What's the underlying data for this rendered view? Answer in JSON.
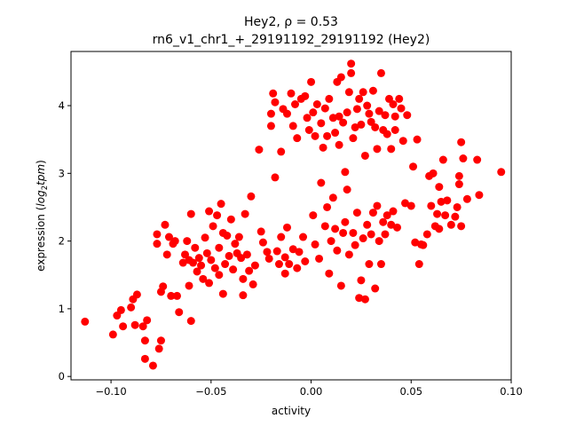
{
  "chart_data": {
    "type": "scatter",
    "title": "Hey2, ρ = 0.53",
    "subtitle": "rn6_v1_chr1_+_29191192_29191192 (Hey2)",
    "xlabel": "activity",
    "ylabel_prefix": "expression (",
    "ylabel_math": "log",
    "ylabel_sub": "2",
    "ylabel_math2": "tpm",
    "ylabel_suffix": ")",
    "xlim": [
      -0.12,
      0.1
    ],
    "ylim": [
      -0.05,
      4.8
    ],
    "xticks": [
      {
        "value": -0.1,
        "label": "−0.10"
      },
      {
        "value": -0.05,
        "label": "−0.05"
      },
      {
        "value": 0.0,
        "label": "0.00"
      },
      {
        "value": 0.05,
        "label": "0.05"
      },
      {
        "value": 0.1,
        "label": "0.10"
      }
    ],
    "yticks": [
      {
        "value": 0,
        "label": "0"
      },
      {
        "value": 1,
        "label": "1"
      },
      {
        "value": 2,
        "label": "2"
      },
      {
        "value": 3,
        "label": "3"
      },
      {
        "value": 4,
        "label": "4"
      }
    ],
    "grid": false,
    "marker_color": "#ff0000",
    "points": [
      [
        -0.113,
        0.81
      ],
      [
        -0.099,
        0.62
      ],
      [
        -0.097,
        0.9
      ],
      [
        -0.095,
        0.98
      ],
      [
        -0.094,
        0.74
      ],
      [
        -0.09,
        1.02
      ],
      [
        -0.089,
        1.14
      ],
      [
        -0.088,
        0.76
      ],
      [
        -0.087,
        1.21
      ],
      [
        -0.084,
        0.74
      ],
      [
        -0.083,
        0.53
      ],
      [
        -0.083,
        0.26
      ],
      [
        -0.082,
        0.83
      ],
      [
        -0.079,
        0.16
      ],
      [
        -0.077,
        2.1
      ],
      [
        -0.077,
        1.96
      ],
      [
        -0.076,
        0.41
      ],
      [
        -0.075,
        0.53
      ],
      [
        -0.075,
        1.25
      ],
      [
        -0.074,
        1.33
      ],
      [
        -0.073,
        2.24
      ],
      [
        -0.072,
        1.8
      ],
      [
        -0.071,
        2.06
      ],
      [
        -0.07,
        1.19
      ],
      [
        -0.069,
        1.96
      ],
      [
        -0.068,
        2.0
      ],
      [
        -0.067,
        1.19
      ],
      [
        -0.066,
        0.95
      ],
      [
        -0.064,
        1.68
      ],
      [
        -0.063,
        1.8
      ],
      [
        -0.062,
        2.0
      ],
      [
        -0.061,
        1.72
      ],
      [
        -0.061,
        1.34
      ],
      [
        -0.06,
        2.4
      ],
      [
        -0.06,
        0.82
      ],
      [
        -0.059,
        1.68
      ],
      [
        -0.058,
        1.9
      ],
      [
        -0.057,
        1.55
      ],
      [
        -0.056,
        1.75
      ],
      [
        -0.055,
        1.64
      ],
      [
        -0.054,
        1.44
      ],
      [
        -0.053,
        2.05
      ],
      [
        -0.052,
        1.82
      ],
      [
        -0.051,
        2.44
      ],
      [
        -0.051,
        1.38
      ],
      [
        -0.05,
        1.72
      ],
      [
        -0.049,
        2.22
      ],
      [
        -0.048,
        1.6
      ],
      [
        -0.047,
        2.38
      ],
      [
        -0.046,
        1.9
      ],
      [
        -0.046,
        1.5
      ],
      [
        -0.045,
        2.55
      ],
      [
        -0.044,
        2.12
      ],
      [
        -0.044,
        1.22
      ],
      [
        -0.043,
        1.66
      ],
      [
        -0.042,
        2.08
      ],
      [
        -0.041,
        1.78
      ],
      [
        -0.04,
        2.32
      ],
      [
        -0.039,
        1.58
      ],
      [
        -0.038,
        1.96
      ],
      [
        -0.037,
        1.82
      ],
      [
        -0.036,
        2.06
      ],
      [
        -0.035,
        1.75
      ],
      [
        -0.034,
        1.44
      ],
      [
        -0.034,
        1.2
      ],
      [
        -0.033,
        2.4
      ],
      [
        -0.032,
        1.8
      ],
      [
        -0.031,
        1.56
      ],
      [
        -0.03,
        2.66
      ],
      [
        -0.029,
        1.36
      ],
      [
        -0.028,
        1.64
      ],
      [
        -0.026,
        3.35
      ],
      [
        -0.025,
        2.14
      ],
      [
        -0.024,
        1.98
      ],
      [
        -0.022,
        1.84
      ],
      [
        -0.021,
        1.74
      ],
      [
        -0.02,
        3.88
      ],
      [
        -0.02,
        3.7
      ],
      [
        -0.019,
        4.18
      ],
      [
        -0.018,
        2.94
      ],
      [
        -0.018,
        4.05
      ],
      [
        -0.017,
        1.85
      ],
      [
        -0.016,
        1.66
      ],
      [
        -0.015,
        3.32
      ],
      [
        -0.015,
        2.06
      ],
      [
        -0.014,
        3.95
      ],
      [
        -0.013,
        1.76
      ],
      [
        -0.013,
        1.52
      ],
      [
        -0.012,
        3.88
      ],
      [
        -0.012,
        2.2
      ],
      [
        -0.011,
        1.66
      ],
      [
        -0.01,
        4.18
      ],
      [
        -0.009,
        3.7
      ],
      [
        -0.009,
        1.88
      ],
      [
        -0.008,
        4.02
      ],
      [
        -0.007,
        3.52
      ],
      [
        -0.007,
        1.6
      ],
      [
        -0.006,
        1.84
      ],
      [
        -0.005,
        4.1
      ],
      [
        -0.004,
        2.06
      ],
      [
        -0.003,
        4.14
      ],
      [
        -0.003,
        1.7
      ],
      [
        -0.002,
        3.82
      ],
      [
        -0.001,
        3.64
      ],
      [
        0.0,
        4.35
      ],
      [
        0.001,
        3.9
      ],
      [
        0.001,
        2.38
      ],
      [
        0.002,
        1.95
      ],
      [
        0.002,
        3.55
      ],
      [
        0.003,
        4.02
      ],
      [
        0.004,
        1.74
      ],
      [
        0.005,
        2.86
      ],
      [
        0.005,
        3.74
      ],
      [
        0.006,
        3.38
      ],
      [
        0.007,
        2.22
      ],
      [
        0.007,
        3.96
      ],
      [
        0.008,
        3.55
      ],
      [
        0.008,
        2.5
      ],
      [
        0.009,
        1.52
      ],
      [
        0.009,
        4.1
      ],
      [
        0.01,
        2.0
      ],
      [
        0.011,
        3.82
      ],
      [
        0.011,
        2.64
      ],
      [
        0.012,
        3.6
      ],
      [
        0.012,
        2.18
      ],
      [
        0.013,
        4.35
      ],
      [
        0.013,
        1.86
      ],
      [
        0.014,
        3.42
      ],
      [
        0.014,
        3.84
      ],
      [
        0.015,
        1.34
      ],
      [
        0.015,
        4.42
      ],
      [
        0.016,
        3.75
      ],
      [
        0.016,
        2.12
      ],
      [
        0.017,
        3.02
      ],
      [
        0.017,
        2.28
      ],
      [
        0.018,
        2.76
      ],
      [
        0.018,
        3.9
      ],
      [
        0.019,
        4.2
      ],
      [
        0.019,
        1.8
      ],
      [
        0.02,
        4.62
      ],
      [
        0.02,
        4.48
      ],
      [
        0.021,
        3.52
      ],
      [
        0.021,
        2.12
      ],
      [
        0.022,
        1.94
      ],
      [
        0.022,
        3.68
      ],
      [
        0.023,
        3.95
      ],
      [
        0.023,
        2.42
      ],
      [
        0.024,
        1.16
      ],
      [
        0.024,
        4.1
      ],
      [
        0.025,
        3.72
      ],
      [
        0.025,
        1.42
      ],
      [
        0.026,
        4.2
      ],
      [
        0.026,
        2.04
      ],
      [
        0.027,
        1.14
      ],
      [
        0.027,
        3.26
      ],
      [
        0.028,
        2.24
      ],
      [
        0.028,
        4.0
      ],
      [
        0.029,
        1.66
      ],
      [
        0.029,
        3.88
      ],
      [
        0.03,
        2.1
      ],
      [
        0.03,
        3.76
      ],
      [
        0.031,
        2.42
      ],
      [
        0.031,
        4.22
      ],
      [
        0.032,
        1.3
      ],
      [
        0.032,
        3.68
      ],
      [
        0.033,
        2.52
      ],
      [
        0.033,
        3.36
      ],
      [
        0.034,
        2.0
      ],
      [
        0.034,
        3.92
      ],
      [
        0.035,
        1.66
      ],
      [
        0.035,
        4.48
      ],
      [
        0.036,
        2.28
      ],
      [
        0.036,
        3.64
      ],
      [
        0.037,
        2.1
      ],
      [
        0.037,
        3.86
      ],
      [
        0.038,
        2.38
      ],
      [
        0.038,
        3.58
      ],
      [
        0.039,
        4.1
      ],
      [
        0.04,
        3.36
      ],
      [
        0.04,
        2.24
      ],
      [
        0.041,
        4.02
      ],
      [
        0.041,
        2.44
      ],
      [
        0.042,
        3.64
      ],
      [
        0.042,
        3.84
      ],
      [
        0.043,
        2.2
      ],
      [
        0.044,
        4.1
      ],
      [
        0.045,
        3.96
      ],
      [
        0.046,
        3.48
      ],
      [
        0.047,
        2.56
      ],
      [
        0.048,
        3.86
      ],
      [
        0.05,
        2.52
      ],
      [
        0.051,
        3.1
      ],
      [
        0.052,
        1.98
      ],
      [
        0.053,
        3.5
      ],
      [
        0.054,
        1.66
      ],
      [
        0.055,
        1.95
      ],
      [
        0.056,
        1.94
      ],
      [
        0.058,
        2.1
      ],
      [
        0.059,
        2.96
      ],
      [
        0.06,
        2.52
      ],
      [
        0.061,
        3.0
      ],
      [
        0.062,
        2.22
      ],
      [
        0.063,
        2.4
      ],
      [
        0.064,
        2.8
      ],
      [
        0.064,
        2.18
      ],
      [
        0.065,
        2.58
      ],
      [
        0.066,
        3.2
      ],
      [
        0.067,
        2.38
      ],
      [
        0.068,
        2.6
      ],
      [
        0.07,
        2.24
      ],
      [
        0.072,
        2.36
      ],
      [
        0.073,
        2.5
      ],
      [
        0.074,
        2.84
      ],
      [
        0.074,
        2.96
      ],
      [
        0.075,
        3.46
      ],
      [
        0.075,
        2.22
      ],
      [
        0.076,
        3.22
      ],
      [
        0.078,
        2.62
      ],
      [
        0.083,
        3.2
      ],
      [
        0.084,
        2.68
      ],
      [
        0.095,
        3.02
      ]
    ]
  }
}
